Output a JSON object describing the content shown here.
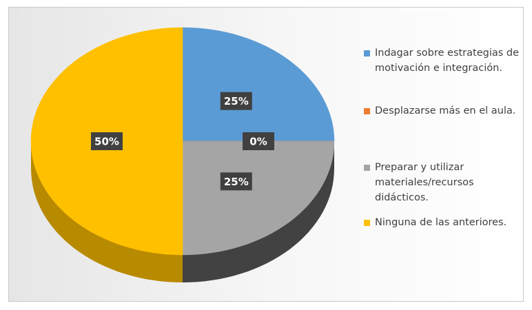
{
  "chart_data": {
    "type": "pie",
    "categories": [
      "Indagar sobre estrategias de motivación e integración.",
      "Desplazarse más en el aula.",
      "Preparar y utilizar materiales/recursos didácticos.",
      "Ninguna de las anteriores."
    ],
    "values": [
      25,
      0,
      25,
      50
    ],
    "value_labels": [
      "25%",
      "0%",
      "25%",
      "50%"
    ],
    "colors": [
      "#5b9bd5",
      "#ed7d31",
      "#a5a5a5",
      "#ffc000"
    ],
    "legend": "right"
  }
}
